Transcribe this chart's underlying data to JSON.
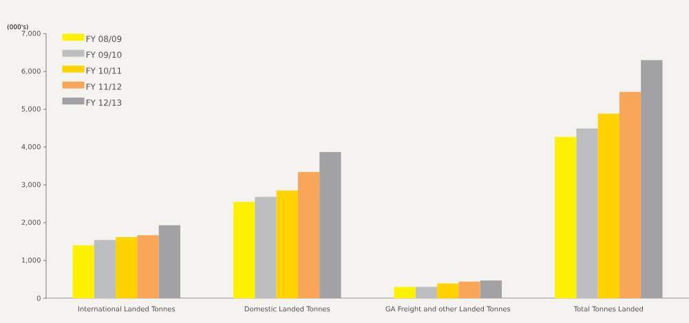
{
  "chart_data": {
    "type": "bar",
    "ylabel": "(000's)",
    "categories": [
      "International Landed Tonnes",
      "Domestic Landed Tonnes",
      "GA Freight and other Landed Tonnes",
      "Total Tonnes Landed"
    ],
    "series": [
      {
        "name": "FY 08/09",
        "color": "#fff200",
        "values": [
          1400,
          2550,
          300,
          4270
        ]
      },
      {
        "name": "FY 09/10",
        "color": "#bcbec0",
        "values": [
          1540,
          2680,
          300,
          4490
        ]
      },
      {
        "name": "FY 10/11",
        "color": "#ffd200",
        "values": [
          1620,
          2850,
          390,
          4880
        ]
      },
      {
        "name": "FY 11/12",
        "color": "#f9a65a",
        "values": [
          1670,
          3340,
          440,
          5460
        ]
      },
      {
        "name": "FY 12/13",
        "color": "#a2a2a4",
        "values": [
          1930,
          3870,
          470,
          6300
        ]
      }
    ],
    "ylim": [
      0,
      7000
    ],
    "yticks": [
      {
        "value": 0,
        "label": "0"
      },
      {
        "value": 1000,
        "label": "1,000"
      },
      {
        "value": 2000,
        "label": "2,000"
      },
      {
        "value": 3000,
        "label": "3,000"
      },
      {
        "value": 4000,
        "label": "4,000"
      },
      {
        "value": 5000,
        "label": "5,000"
      },
      {
        "value": 6000,
        "label": "6,000"
      },
      {
        "value": 7000,
        "label": "7,000"
      }
    ],
    "legend": "top left",
    "grid": false
  }
}
